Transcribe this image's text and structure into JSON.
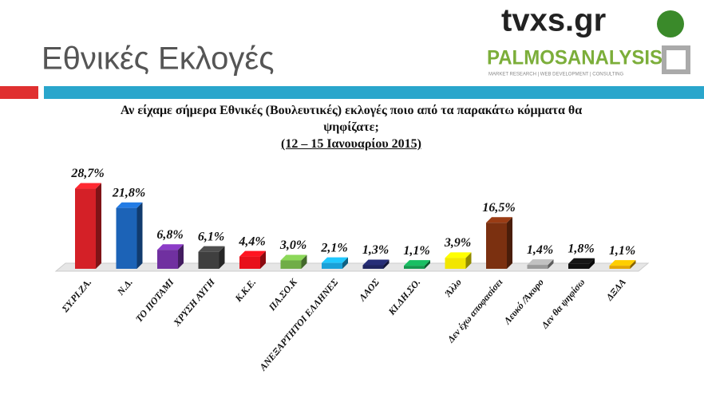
{
  "header": {
    "title": "Εθνικές Εκλογές",
    "logo_main": "tvxs.gr",
    "logo_second": "PALMOSANALYSIS",
    "logo_tagline": "MARKET RESEARCH | WEB DEVELOPMENT | CONSULTING"
  },
  "chart_data": {
    "type": "bar",
    "title": "Αν είχαμε σήμερα Εθνικές (Βουλευτικές) εκλογές ποιο από τα παρακάτω κόμματα θα ψηφίζατε;",
    "subtitle": "(12 – 15 Ιανουαρίου 2015)",
    "categories": [
      "ΣΥ.ΡΙ.ΖΑ.",
      "Ν.Δ.",
      "ΤΟ ΠΟΤΑΜΙ",
      "ΧΡΥΣΗ ΑΥΓΗ",
      "Κ.Κ.Ε.",
      "ΠΑ.ΣΟ.Κ",
      "ΑΝΕΞΑΡΤΗΤΟΙ ΕΛΛΗΝΕΣ",
      "ΛΑΟΣ",
      "ΚΙ.ΔΗ.ΣΟ.",
      "Άλλο",
      "Δεν έχω αποφασίσει",
      "Λευκό /Άκυρο",
      "Δεν θα ψηφίσω",
      "ΔΞΔΑ"
    ],
    "values": [
      28.7,
      21.8,
      6.8,
      6.1,
      4.4,
      3.0,
      2.1,
      1.3,
      1.1,
      3.9,
      16.5,
      1.4,
      1.8,
      1.1
    ],
    "value_labels": [
      "28,7%",
      "21,8%",
      "6,8%",
      "6,1%",
      "4,4%",
      "3,0%",
      "2,1%",
      "1,3%",
      "1,1%",
      "3,9%",
      "16,5%",
      "1,4%",
      "1,8%",
      "1,1%"
    ],
    "colors": [
      "#d42027",
      "#1c63b7",
      "#7030a0",
      "#3f3f3f",
      "#e8101a",
      "#70ad47",
      "#1aa1d8",
      "#1f2560",
      "#14994f",
      "#f2e600",
      "#7b3010",
      "#9a9a9a",
      "#111111",
      "#e3a500"
    ]
  }
}
